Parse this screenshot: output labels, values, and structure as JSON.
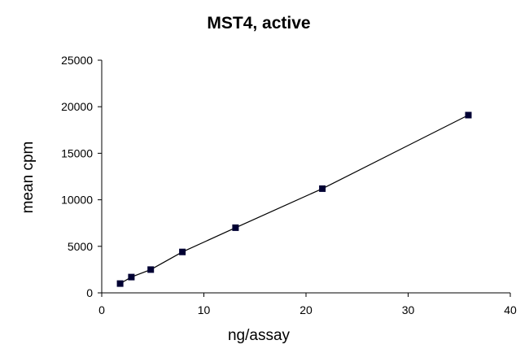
{
  "chart_data": {
    "type": "scatter",
    "title": "MST4, active",
    "xlabel": "ng/assay",
    "ylabel": "mean cpm",
    "xlim": [
      0,
      40
    ],
    "ylim": [
      0,
      25000
    ],
    "x_ticks": [
      0,
      10,
      20,
      30,
      40
    ],
    "y_ticks": [
      0,
      5000,
      10000,
      15000,
      20000,
      25000
    ],
    "grid": false,
    "legend": "none",
    "connect_points": true,
    "series": [
      {
        "x": [
          1.8,
          2.9,
          4.8,
          7.9,
          13.1,
          21.6,
          35.9
        ],
        "y": [
          1000,
          1700,
          2500,
          4400,
          7000,
          11200,
          19100
        ]
      }
    ],
    "colors": {
      "line": "#000000",
      "marker": "#000033",
      "axis": "#000000"
    }
  }
}
